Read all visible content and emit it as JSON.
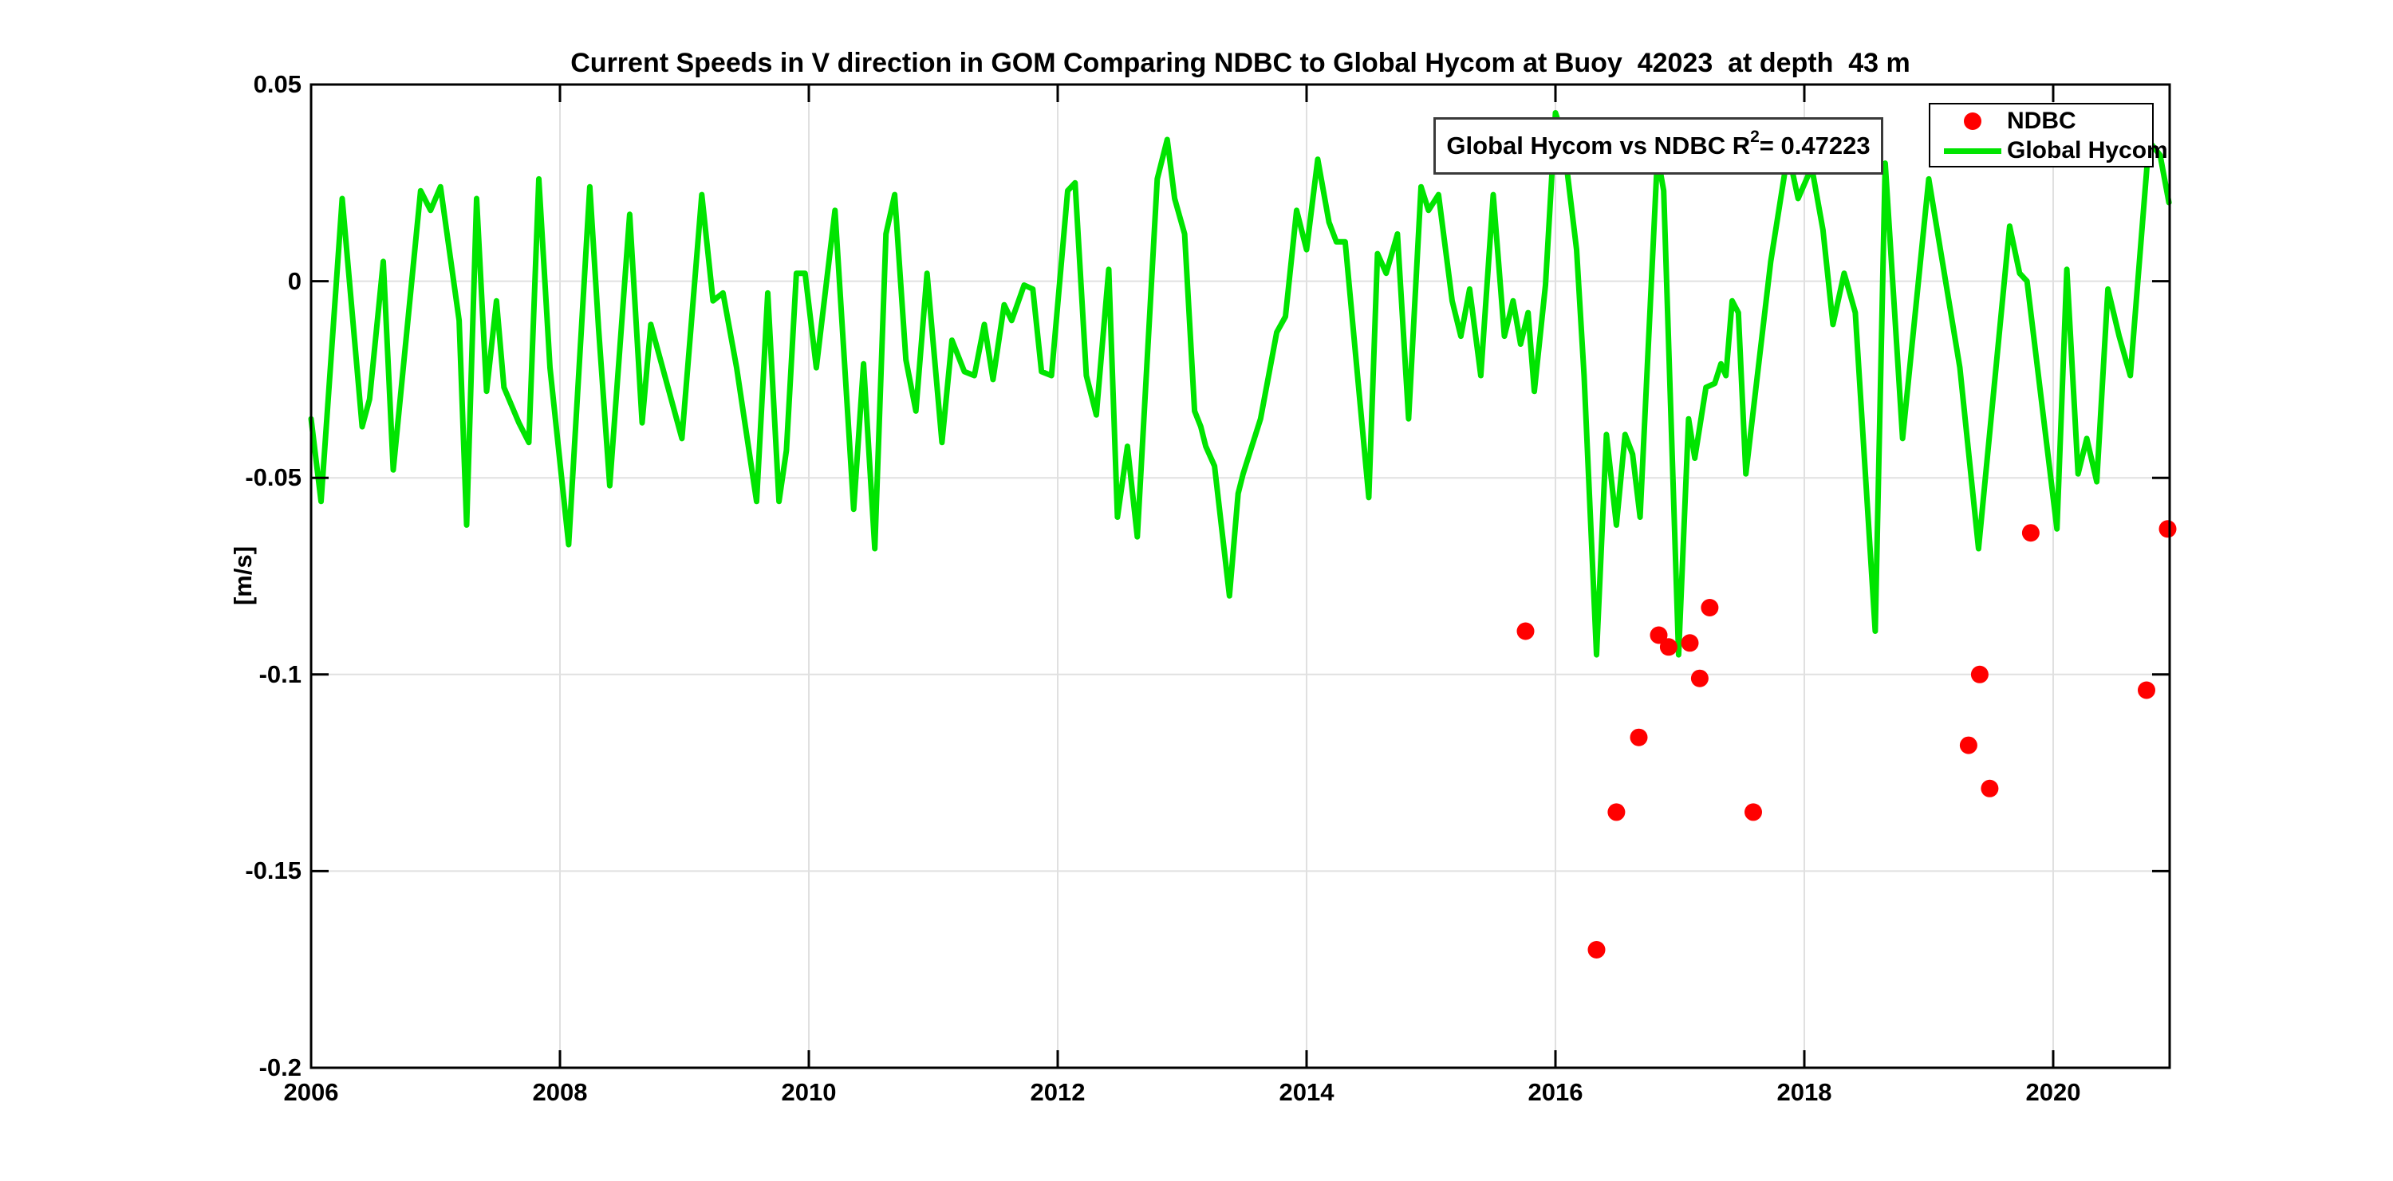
{
  "title": "Current Speeds in V direction in GOM Comparing NDBC to Global Hycom at Buoy  42023  at depth  43 m",
  "annotation": {
    "prefix": "Global Hycom vs NDBC R",
    "sup": "2",
    "suffix": " = 0.47223",
    "r_squared_value": "0.47223"
  },
  "legend": [
    {
      "label": "NDBC",
      "marker": "dot",
      "color": "#FF0000"
    },
    {
      "label": "Global Hycom",
      "marker": "line",
      "color": "#00E400"
    }
  ],
  "colors": {
    "ndbc": "#FF0000",
    "hycom": "#00E400",
    "grid": "#E0E0E0",
    "axis": "#000000"
  },
  "chart_data": {
    "type": "line",
    "title": "Current Speeds in V direction in GOM Comparing NDBC to Global Hycom at Buoy  42023  at depth  43 m",
    "xlabel": "",
    "ylabel": "[m/s]",
    "xlim": [
      2006,
      2020.936
    ],
    "ylim": [
      -0.2,
      0.05
    ],
    "xticks": [
      2006,
      2008,
      2010,
      2012,
      2014,
      2016,
      2018,
      2020
    ],
    "xtick_labels": [
      "2006",
      "2008",
      "2010",
      "2012",
      "2014",
      "2016",
      "2018",
      "2020"
    ],
    "yticks": [
      0.05,
      0,
      -0.05,
      -0.1,
      -0.15,
      -0.2
    ],
    "ytick_labels": [
      "0.05",
      "0",
      "-0.05",
      "-0.1",
      "-0.15",
      "-0.2"
    ],
    "grid": true,
    "legend_position": "top-right",
    "series": [
      {
        "name": "Global Hycom",
        "type": "line",
        "color": "#00E400",
        "points": [
          [
            2006.0,
            -0.035
          ],
          [
            2006.08,
            -0.056
          ],
          [
            2006.25,
            0.021
          ],
          [
            2006.41,
            -0.037
          ],
          [
            2006.47,
            -0.03
          ],
          [
            2006.58,
            0.005
          ],
          [
            2006.66,
            -0.048
          ],
          [
            2006.88,
            0.023
          ],
          [
            2006.96,
            0.018
          ],
          [
            2007.04,
            0.024
          ],
          [
            2007.19,
            -0.01
          ],
          [
            2007.25,
            -0.062
          ],
          [
            2007.33,
            0.021
          ],
          [
            2007.41,
            -0.028
          ],
          [
            2007.49,
            -0.005
          ],
          [
            2007.55,
            -0.027
          ],
          [
            2007.67,
            -0.036
          ],
          [
            2007.75,
            -0.041
          ],
          [
            2007.83,
            0.026
          ],
          [
            2007.92,
            -0.022
          ],
          [
            2008.07,
            -0.067
          ],
          [
            2008.24,
            0.024
          ],
          [
            2008.31,
            -0.012
          ],
          [
            2008.4,
            -0.052
          ],
          [
            2008.56,
            0.017
          ],
          [
            2008.66,
            -0.036
          ],
          [
            2008.73,
            -0.011
          ],
          [
            2008.98,
            -0.04
          ],
          [
            2009.14,
            0.022
          ],
          [
            2009.23,
            -0.005
          ],
          [
            2009.31,
            -0.003
          ],
          [
            2009.42,
            -0.022
          ],
          [
            2009.58,
            -0.056
          ],
          [
            2009.67,
            -0.003
          ],
          [
            2009.76,
            -0.056
          ],
          [
            2009.82,
            -0.043
          ],
          [
            2009.9,
            0.002
          ],
          [
            2009.97,
            0.002
          ],
          [
            2010.06,
            -0.022
          ],
          [
            2010.21,
            0.018
          ],
          [
            2010.36,
            -0.058
          ],
          [
            2010.44,
            -0.021
          ],
          [
            2010.53,
            -0.068
          ],
          [
            2010.62,
            0.012
          ],
          [
            2010.69,
            0.022
          ],
          [
            2010.78,
            -0.02
          ],
          [
            2010.86,
            -0.033
          ],
          [
            2010.95,
            0.002
          ],
          [
            2011.07,
            -0.041
          ],
          [
            2011.15,
            -0.015
          ],
          [
            2011.25,
            -0.023
          ],
          [
            2011.33,
            -0.024
          ],
          [
            2011.41,
            -0.011
          ],
          [
            2011.48,
            -0.025
          ],
          [
            2011.57,
            -0.006
          ],
          [
            2011.63,
            -0.01
          ],
          [
            2011.73,
            -0.001
          ],
          [
            2011.8,
            -0.002
          ],
          [
            2011.87,
            -0.023
          ],
          [
            2011.95,
            -0.024
          ],
          [
            2012.08,
            0.023
          ],
          [
            2012.14,
            0.025
          ],
          [
            2012.23,
            -0.024
          ],
          [
            2012.31,
            -0.034
          ],
          [
            2012.41,
            0.003
          ],
          [
            2012.48,
            -0.06
          ],
          [
            2012.56,
            -0.042
          ],
          [
            2012.64,
            -0.065
          ],
          [
            2012.8,
            0.026
          ],
          [
            2012.88,
            0.036
          ],
          [
            2012.94,
            0.021
          ],
          [
            2013.02,
            0.012
          ],
          [
            2013.1,
            -0.033
          ],
          [
            2013.15,
            -0.037
          ],
          [
            2013.19,
            -0.042
          ],
          [
            2013.26,
            -0.047
          ],
          [
            2013.38,
            -0.08
          ],
          [
            2013.45,
            -0.054
          ],
          [
            2013.49,
            -0.049
          ],
          [
            2013.63,
            -0.035
          ],
          [
            2013.76,
            -0.013
          ],
          [
            2013.83,
            -0.009
          ],
          [
            2013.92,
            0.018
          ],
          [
            2014.0,
            0.008
          ],
          [
            2014.09,
            0.031
          ],
          [
            2014.18,
            0.015
          ],
          [
            2014.24,
            0.01
          ],
          [
            2014.31,
            0.01
          ],
          [
            2014.5,
            -0.055
          ],
          [
            2014.57,
            0.007
          ],
          [
            2014.64,
            0.002
          ],
          [
            2014.73,
            0.012
          ],
          [
            2014.82,
            -0.035
          ],
          [
            2014.92,
            0.024
          ],
          [
            2014.98,
            0.018
          ],
          [
            2015.06,
            0.022
          ],
          [
            2015.17,
            -0.005
          ],
          [
            2015.24,
            -0.014
          ],
          [
            2015.31,
            -0.002
          ],
          [
            2015.4,
            -0.024
          ],
          [
            2015.5,
            0.022
          ],
          [
            2015.59,
            -0.014
          ],
          [
            2015.66,
            -0.005
          ],
          [
            2015.72,
            -0.016
          ],
          [
            2015.78,
            -0.008
          ],
          [
            2015.83,
            -0.028
          ],
          [
            2015.92,
            -0.001
          ],
          [
            2016.0,
            0.0428
          ],
          [
            2016.06,
            0.037
          ],
          [
            2016.17,
            0.008
          ],
          [
            2016.23,
            -0.024
          ],
          [
            2016.33,
            -0.095
          ],
          [
            2016.41,
            -0.039
          ],
          [
            2016.49,
            -0.062
          ],
          [
            2016.56,
            -0.039
          ],
          [
            2016.62,
            -0.044
          ],
          [
            2016.68,
            -0.06
          ],
          [
            2016.82,
            0.032
          ],
          [
            2016.87,
            0.023
          ],
          [
            2016.99,
            -0.095
          ],
          [
            2017.07,
            -0.035
          ],
          [
            2017.12,
            -0.045
          ],
          [
            2017.21,
            -0.027
          ],
          [
            2017.28,
            -0.026
          ],
          [
            2017.33,
            -0.021
          ],
          [
            2017.37,
            -0.024
          ],
          [
            2017.42,
            -0.005
          ],
          [
            2017.47,
            -0.008
          ],
          [
            2017.53,
            -0.049
          ],
          [
            2017.73,
            0.005
          ],
          [
            2017.87,
            0.033
          ],
          [
            2017.95,
            0.021
          ],
          [
            2018.06,
            0.029
          ],
          [
            2018.15,
            0.013
          ],
          [
            2018.23,
            -0.011
          ],
          [
            2018.32,
            0.002
          ],
          [
            2018.41,
            -0.008
          ],
          [
            2018.57,
            -0.089
          ],
          [
            2018.65,
            0.03
          ],
          [
            2018.79,
            -0.04
          ],
          [
            2019.0,
            0.026
          ],
          [
            2019.25,
            -0.022
          ],
          [
            2019.4,
            -0.068
          ],
          [
            2019.65,
            0.014
          ],
          [
            2019.73,
            0.002
          ],
          [
            2019.79,
            0.0
          ],
          [
            2020.03,
            -0.063
          ],
          [
            2020.11,
            0.003
          ],
          [
            2020.2,
            -0.049
          ],
          [
            2020.27,
            -0.04
          ],
          [
            2020.35,
            -0.051
          ],
          [
            2020.44,
            -0.002
          ],
          [
            2020.53,
            -0.014
          ],
          [
            2020.62,
            -0.024
          ],
          [
            2020.77,
            0.0356
          ],
          [
            2020.86,
            0.032
          ],
          [
            2020.93,
            0.02
          ]
        ]
      },
      {
        "name": "NDBC",
        "type": "scatter",
        "color": "#FF0000",
        "points": [
          [
            2015.76,
            -0.089
          ],
          [
            2016.33,
            -0.17
          ],
          [
            2016.49,
            -0.135
          ],
          [
            2016.67,
            -0.116
          ],
          [
            2016.83,
            -0.09
          ],
          [
            2016.91,
            -0.093
          ],
          [
            2017.08,
            -0.092
          ],
          [
            2017.16,
            -0.101
          ],
          [
            2017.24,
            -0.083
          ],
          [
            2017.59,
            -0.135
          ],
          [
            2019.32,
            -0.118
          ],
          [
            2019.41,
            -0.1
          ],
          [
            2019.49,
            -0.129
          ],
          [
            2019.82,
            -0.064
          ],
          [
            2020.75,
            -0.104
          ],
          [
            2020.92,
            -0.063
          ]
        ]
      }
    ]
  }
}
